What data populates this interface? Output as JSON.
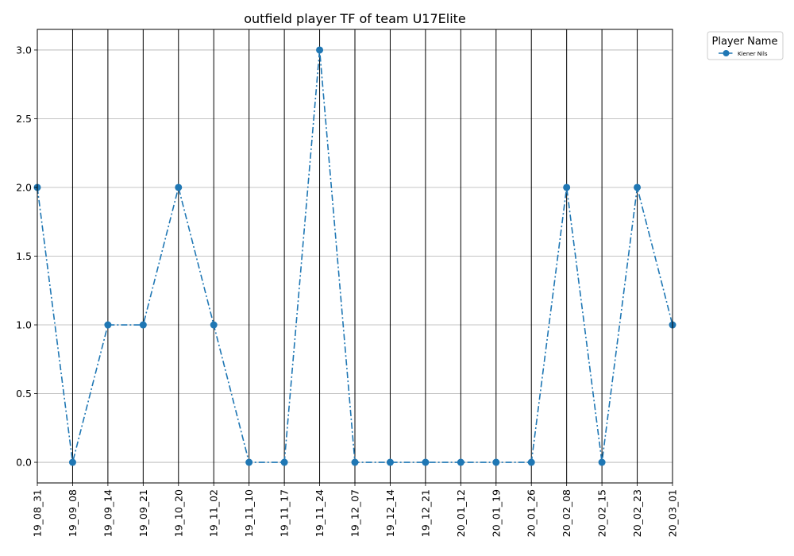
{
  "chart_data": {
    "type": "line",
    "title": "outfield player TF of team U17Elite",
    "xlabel": "",
    "ylabel": "",
    "categories": [
      "19_08_31",
      "19_09_08",
      "19_09_14",
      "19_09_21",
      "19_10_20",
      "19_11_02",
      "19_11_10",
      "19_11_17",
      "19_11_24",
      "19_12_07",
      "19_12_14",
      "19_12_21",
      "20_01_12",
      "20_01_19",
      "20_01_26",
      "20_02_08",
      "20_02_15",
      "20_02_23",
      "20_03_01"
    ],
    "series": [
      {
        "name": "Kiener Nils",
        "values": [
          2,
          0,
          1,
          1,
          2,
          1,
          0,
          0,
          3,
          0,
          0,
          0,
          0,
          0,
          0,
          2,
          0,
          2,
          1
        ],
        "color": "#1f77b4"
      }
    ],
    "ylim": [
      -0.15,
      3.15
    ],
    "yticks": [
      0.0,
      0.5,
      1.0,
      1.5,
      2.0,
      2.5,
      3.0
    ],
    "ytick_labels": [
      "0.0",
      "0.5",
      "1.0",
      "1.5",
      "2.0",
      "2.5",
      "3.0"
    ],
    "grid": "horizontal gridlines; black vertical line at every date",
    "line_style": "dash-dot",
    "marker": "circle",
    "legend": {
      "title": "Player Name",
      "placement": "outside-top-right"
    }
  }
}
